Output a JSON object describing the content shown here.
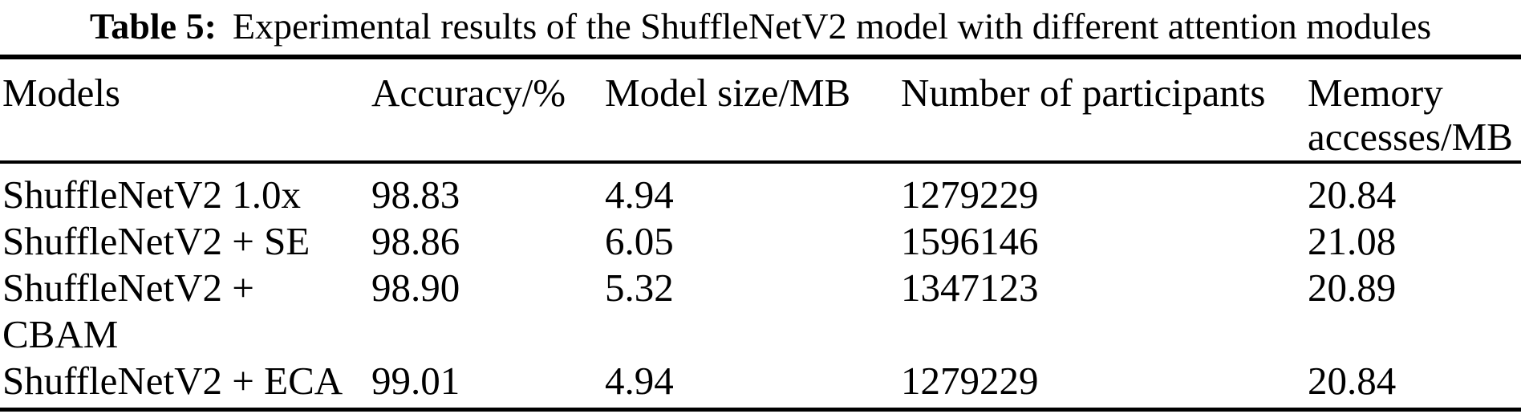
{
  "caption": {
    "label": "Table 5:",
    "text": "Experimental results of the ShuffleNetV2 model with different attention modules"
  },
  "colors": {
    "text": "#000000",
    "background": "#ffffff",
    "rule": "#000000"
  },
  "table": {
    "columns": [
      "Models",
      "Accuracy/%",
      "Model size/MB",
      "Number of participants",
      "Memory\naccesses/MB"
    ],
    "rows": [
      {
        "model": "ShuffleNetV2 1.0x",
        "accuracy": "98.83",
        "model_size": "4.94",
        "participants": "1279229",
        "memory_accesses": "20.84"
      },
      {
        "model": "ShuffleNetV2 + SE",
        "accuracy": "98.86",
        "model_size": "6.05",
        "participants": "1596146",
        "memory_accesses": "21.08"
      },
      {
        "model": "ShuffleNetV2 +\nCBAM",
        "accuracy": "98.90",
        "model_size": "5.32",
        "participants": "1347123",
        "memory_accesses": "20.89"
      },
      {
        "model": "ShuffleNetV2 + ECA",
        "accuracy": "99.01",
        "model_size": "4.94",
        "participants": "1279229",
        "memory_accesses": "20.84"
      }
    ]
  }
}
